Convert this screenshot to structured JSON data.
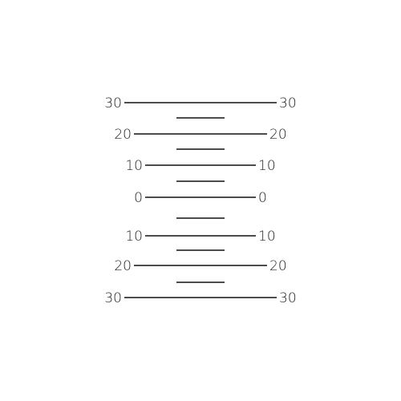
{
  "ladder": {
    "major_rungs": [
      {
        "left_label": "30",
        "right_label": "30"
      },
      {
        "left_label": "20",
        "right_label": "20"
      },
      {
        "left_label": "10",
        "right_label": "10"
      },
      {
        "left_label": "0",
        "right_label": "0"
      },
      {
        "left_label": "10",
        "right_label": "10"
      },
      {
        "left_label": "20",
        "right_label": "20"
      },
      {
        "left_label": "30",
        "right_label": "30"
      }
    ],
    "line_color": "#111111",
    "label_color": "#222222"
  }
}
